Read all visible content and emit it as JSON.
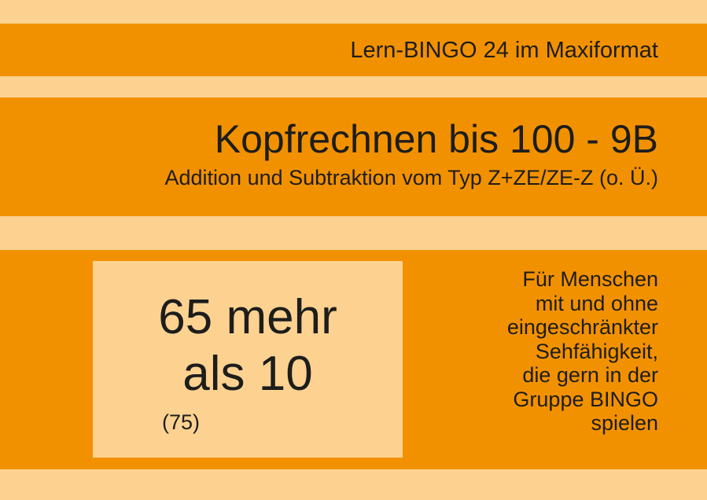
{
  "header": {
    "series": "Lern-BINGO 24 im Maxiformat"
  },
  "title_block": {
    "title": "Kopfrechnen bis 100 - 9B",
    "subtitle": "Addition und Subtraktion vom Typ Z+ZE/ZE-Z (o. Ü.)"
  },
  "card": {
    "task_line1": "65 mehr",
    "task_line2": "als 10",
    "answer": "(75)"
  },
  "note": {
    "lines": [
      "Für Menschen",
      "mit und ohne",
      "eingeschränkter",
      "Sehfähigkeit,",
      "die gern in der",
      "Gruppe BINGO",
      "spielen"
    ]
  },
  "colors": {
    "orange": "#F29100",
    "light": "#FDD291",
    "text": "#1d1d1b"
  }
}
